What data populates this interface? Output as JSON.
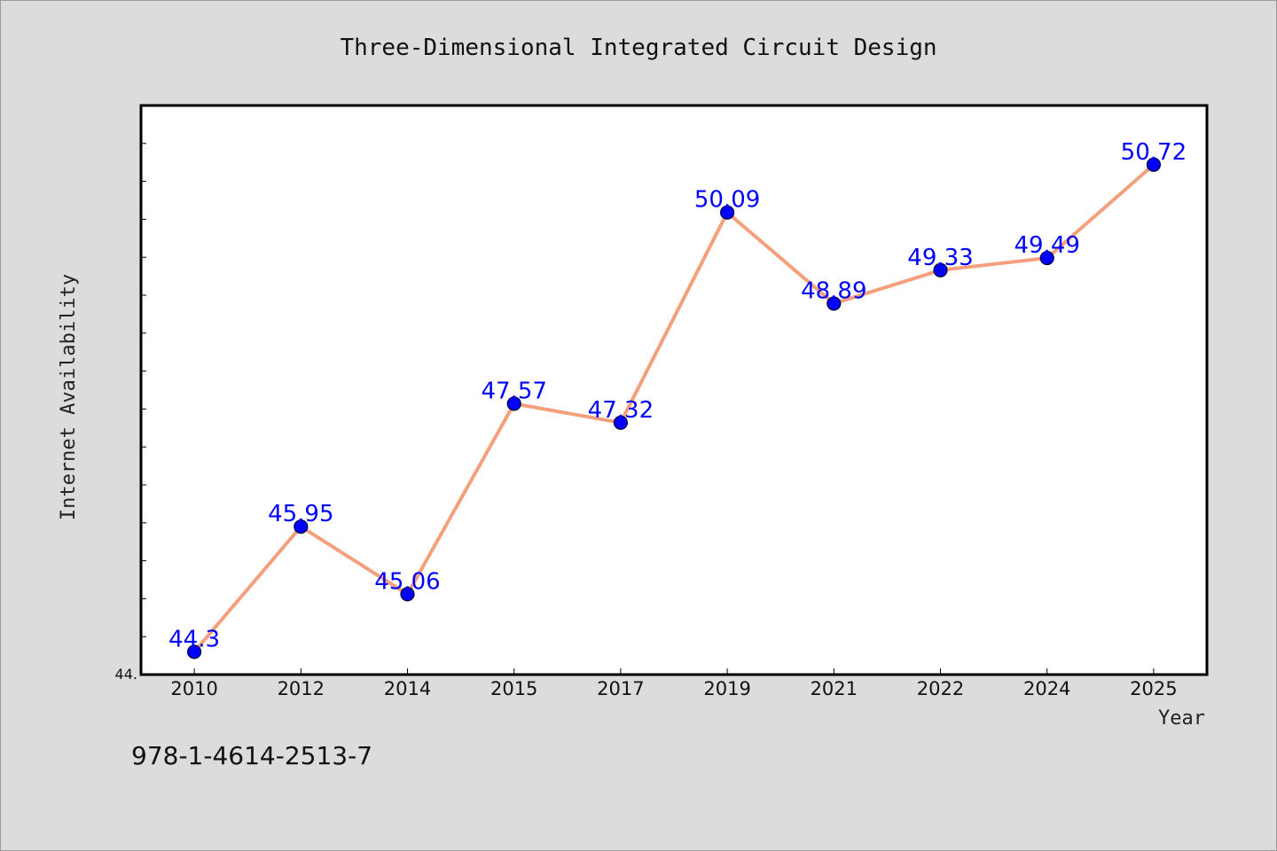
{
  "chart_data": {
    "type": "line",
    "title": "Three-Dimensional Integrated Circuit Design",
    "xlabel": "Year",
    "ylabel": "Internet Availability",
    "categories": [
      "2010",
      "2012",
      "2014",
      "2015",
      "2017",
      "2019",
      "2021",
      "2022",
      "2024",
      "2025"
    ],
    "series": [
      {
        "values": [
          44.3,
          45.95,
          45.06,
          47.57,
          47.32,
          50.09,
          48.89,
          49.33,
          49.49,
          50.72
        ],
        "labels": [
          "44.3",
          "45.95",
          "45.06",
          "47.57",
          "47.32",
          "50.09",
          "48.89",
          "49.33",
          "49.49",
          "50.72"
        ]
      }
    ],
    "ylim": [
      44.0,
      51.5
    ],
    "y_tick_labels": [
      "44."
    ],
    "grid": false,
    "legend": "none",
    "colors": {
      "line": "#f4a07c",
      "marker": "#0000ff",
      "marker_edge": "#000033",
      "data_label": "#0000ff",
      "plot_bg": "#ffffff",
      "figure_bg": "#dcdcdc"
    }
  },
  "footer": {
    "isbn": "978-1-4614-2513-7"
  }
}
